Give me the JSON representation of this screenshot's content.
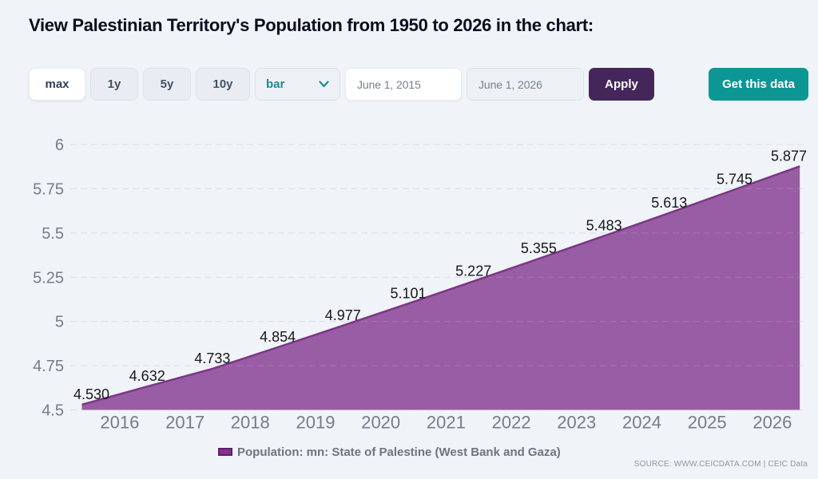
{
  "page": {
    "title": "View Palestinian Territory's Population from 1950 to 2026 in the chart:",
    "background": "#f0f3f7"
  },
  "toolbar": {
    "range_buttons": [
      {
        "label": "max",
        "active": true
      },
      {
        "label": "1y",
        "active": false
      },
      {
        "label": "5y",
        "active": false
      },
      {
        "label": "10y",
        "active": false
      }
    ],
    "chart_type_select": {
      "value": "bar",
      "icon": "chevron-down-icon",
      "accent": "#1a8d8e"
    },
    "date_from": {
      "value": "June 1, 2015"
    },
    "date_to": {
      "value": "June 1, 2026"
    },
    "apply_label": "Apply",
    "apply_color": "#45265a",
    "get_data_label": "Get this data",
    "get_data_color": "#0d9794"
  },
  "chart_data": {
    "type": "area",
    "title": "",
    "xlabel": "",
    "ylabel": "",
    "series": [
      {
        "name": "Population: mn: State of Palestine (West Bank and Gaza)",
        "x_years": [
          2015.42,
          2016.42,
          2017.42,
          2018.42,
          2019.42,
          2020.42,
          2021.42,
          2022.42,
          2023.42,
          2024.42,
          2025.42,
          2026.42
        ],
        "x_dates": [
          "June 1, 2015",
          "June 1, 2016",
          "June 1, 2017",
          "June 1, 2018",
          "June 1, 2019",
          "June 1, 2020",
          "June 1, 2021",
          "June 1, 2022",
          "June 1, 2023",
          "June 1, 2024",
          "June 1, 2025",
          "June 1, 2026"
        ],
        "values": [
          4.53,
          4.632,
          4.733,
          4.854,
          4.977,
          5.101,
          5.227,
          5.355,
          5.483,
          5.613,
          5.745,
          5.877
        ],
        "fill_color": "#90509c",
        "fill_opacity": 0.92,
        "line_color": "#7b3685"
      }
    ],
    "data_labels": [
      "4.530",
      "4.632",
      "4.733",
      "4.854",
      "4.977",
      "5.101",
      "5.227",
      "5.355",
      "5.483",
      "5.613",
      "5.745",
      "5.877"
    ],
    "xticks": [
      2016,
      2017,
      2018,
      2019,
      2020,
      2021,
      2022,
      2023,
      2024,
      2025,
      2026
    ],
    "yticks": [
      4.5,
      4.75,
      5,
      5.25,
      5.5,
      5.75,
      6
    ],
    "ylim": [
      4.5,
      6
    ],
    "grid": "dashed horizontal",
    "legend_position": "bottom",
    "label_color": "#747d88",
    "data_label_color": "#17181a",
    "grid_color": "#dadfe6"
  },
  "legend": {
    "swatch_fill": "#8a2e94",
    "swatch_border": "#5b2263"
  },
  "source": "SOURCE: WWW.CEICDATA.COM | CEIC Data"
}
